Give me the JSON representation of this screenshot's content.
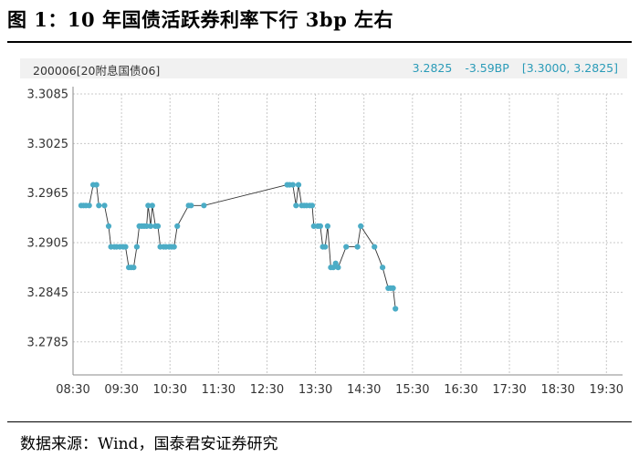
{
  "figure_title": "图 1：10 年国债活跃券利率下行 3bp 左右",
  "source": "数据来源：Wind，国泰君安证券研究",
  "header": {
    "security": "200006[20附息国债06]",
    "last": "3.2825",
    "change": "-3.59BP",
    "range": "[3.3000, 3.2825]"
  },
  "colors": {
    "line": "#333333",
    "marker": "#4bacc6",
    "grid": "#c8c8c8",
    "header_text": "#2a9bb8"
  },
  "chart_data": {
    "type": "line",
    "title": "图 1：10 年国债活跃券利率下行 3bp 左右",
    "xlabel": "",
    "ylabel": "",
    "ylim": [
      3.2745,
      3.3085
    ],
    "xlim": [
      "08:30",
      "19:50"
    ],
    "yticks": [
      "3.3085",
      "3.3025",
      "3.2965",
      "3.2905",
      "3.2845",
      "3.2785"
    ],
    "xticks": [
      "08:30",
      "09:30",
      "10:30",
      "11:30",
      "12:30",
      "13:30",
      "14:30",
      "15:30",
      "16:30",
      "17:30",
      "18:30",
      "19:30"
    ],
    "grid": true,
    "legend": "none",
    "series": [
      {
        "points": [
          [
            "08:40",
            3.295
          ],
          [
            "08:43",
            3.295
          ],
          [
            "08:46",
            3.295
          ],
          [
            "08:50",
            3.295
          ],
          [
            "08:55",
            3.2975
          ],
          [
            "08:59",
            3.2975
          ],
          [
            "09:02",
            3.295
          ],
          [
            "09:09",
            3.295
          ],
          [
            "09:14",
            3.2925
          ],
          [
            "09:17",
            3.29
          ],
          [
            "09:21",
            3.29
          ],
          [
            "09:24",
            3.29
          ],
          [
            "09:28",
            3.29
          ],
          [
            "09:32",
            3.29
          ],
          [
            "09:35",
            3.29
          ],
          [
            "09:39",
            3.2875
          ],
          [
            "09:42",
            3.2875
          ],
          [
            "09:45",
            3.2875
          ],
          [
            "09:49",
            3.29
          ],
          [
            "09:52",
            3.2925
          ],
          [
            "09:55",
            3.2925
          ],
          [
            "09:58",
            3.2925
          ],
          [
            "10:01",
            3.2925
          ],
          [
            "10:03",
            3.295
          ],
          [
            "10:06",
            3.2925
          ],
          [
            "10:08",
            3.295
          ],
          [
            "10:12",
            3.2925
          ],
          [
            "10:15",
            3.2925
          ],
          [
            "10:18",
            3.29
          ],
          [
            "10:22",
            3.29
          ],
          [
            "10:25",
            3.29
          ],
          [
            "10:29",
            3.29
          ],
          [
            "10:32",
            3.29
          ],
          [
            "10:35",
            3.29
          ],
          [
            "10:39",
            3.2925
          ],
          [
            "10:53",
            3.295
          ],
          [
            "10:56",
            3.295
          ],
          [
            "11:12",
            3.295
          ],
          [
            "12:55",
            3.2975
          ],
          [
            "12:58",
            3.2975
          ],
          [
            "13:02",
            3.2975
          ],
          [
            "13:06",
            3.295
          ],
          [
            "13:09",
            3.2975
          ],
          [
            "13:13",
            3.295
          ],
          [
            "13:16",
            3.295
          ],
          [
            "13:19",
            3.295
          ],
          [
            "13:23",
            3.295
          ],
          [
            "13:26",
            3.295
          ],
          [
            "13:28",
            3.2925
          ],
          [
            "13:33",
            3.2925
          ],
          [
            "13:36",
            3.2925
          ],
          [
            "13:39",
            3.29
          ],
          [
            "13:42",
            3.29
          ],
          [
            "13:45",
            3.2925
          ],
          [
            "13:49",
            3.2875
          ],
          [
            "13:52",
            3.2875
          ],
          [
            "13:55",
            3.288
          ],
          [
            "13:58",
            3.2875
          ],
          [
            "14:08",
            3.29
          ],
          [
            "14:22",
            3.29
          ],
          [
            "14:26",
            3.2925
          ],
          [
            "14:43",
            3.29
          ],
          [
            "14:53",
            3.2875
          ],
          [
            "15:00",
            3.285
          ],
          [
            "15:03",
            3.285
          ],
          [
            "15:06",
            3.285
          ],
          [
            "15:09",
            3.2825
          ]
        ]
      }
    ]
  }
}
